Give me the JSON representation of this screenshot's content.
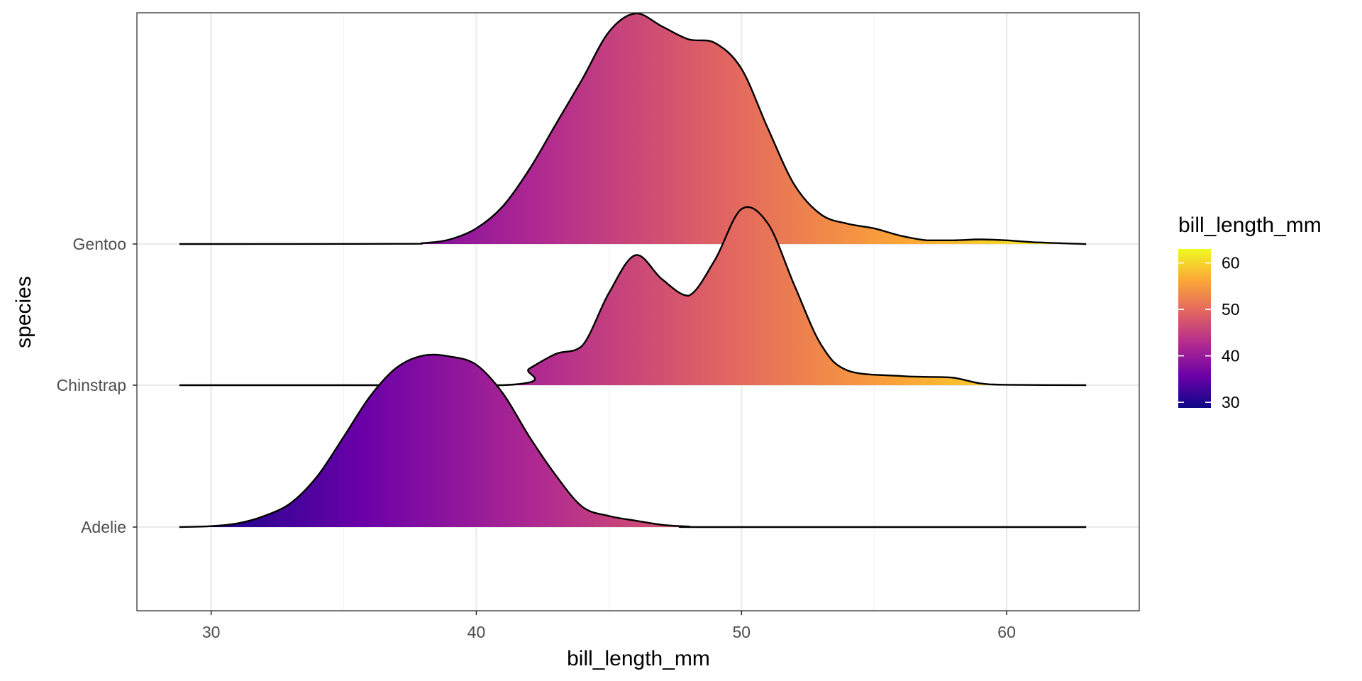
{
  "chart_data": {
    "type": "ridgeline",
    "title": "",
    "xlabel": "bill_length_mm",
    "ylabel": "species",
    "xlim": [
      27.2,
      65.0
    ],
    "x_ticks": [
      30,
      40,
      50,
      60
    ],
    "x_tick_labels": [
      "30",
      "40",
      "50",
      "60"
    ],
    "grid": true,
    "categories": [
      "Adelie",
      "Chinstrap",
      "Gentoo"
    ],
    "series": [
      {
        "name": "Adelie",
        "range": [
          28.8,
          63.0
        ],
        "density": [
          [
            28.8,
            0
          ],
          [
            30,
            0.01
          ],
          [
            31,
            0.04
          ],
          [
            32,
            0.12
          ],
          [
            33,
            0.26
          ],
          [
            34,
            0.55
          ],
          [
            35,
            0.98
          ],
          [
            36,
            1.42
          ],
          [
            37,
            1.73
          ],
          [
            38,
            1.86
          ],
          [
            39,
            1.85
          ],
          [
            40,
            1.76
          ],
          [
            41,
            1.45
          ],
          [
            42,
            0.98
          ],
          [
            43,
            0.56
          ],
          [
            44,
            0.22
          ],
          [
            45,
            0.12
          ],
          [
            46,
            0.07
          ],
          [
            47,
            0.025
          ],
          [
            48,
            0.006
          ],
          [
            49,
            0
          ],
          [
            63,
            0
          ]
        ]
      },
      {
        "name": "Chinstrap",
        "range": [
          28.8,
          63.0
        ],
        "density": [
          [
            28.8,
            0
          ],
          [
            41,
            0
          ],
          [
            42,
            0.18
          ],
          [
            43,
            0.34
          ],
          [
            44,
            0.43
          ],
          [
            45,
            1.0
          ],
          [
            46,
            1.41
          ],
          [
            47,
            1.15
          ],
          [
            48,
            0.97
          ],
          [
            49,
            1.36
          ],
          [
            50,
            1.91
          ],
          [
            51,
            1.75
          ],
          [
            52,
            1.08
          ],
          [
            53,
            0.44
          ],
          [
            54,
            0.16
          ],
          [
            56,
            0.1
          ],
          [
            57,
            0.09
          ],
          [
            58,
            0.08
          ],
          [
            59,
            0.02
          ],
          [
            60,
            0.005
          ],
          [
            63,
            0
          ]
        ]
      },
      {
        "name": "Gentoo",
        "range": [
          28.8,
          63.0
        ],
        "density": [
          [
            28.8,
            0
          ],
          [
            37,
            0.002
          ],
          [
            38,
            0.01
          ],
          [
            39,
            0.05
          ],
          [
            40,
            0.17
          ],
          [
            41,
            0.41
          ],
          [
            42,
            0.81
          ],
          [
            43,
            1.3
          ],
          [
            44,
            1.79
          ],
          [
            45,
            2.3
          ],
          [
            46,
            2.5
          ],
          [
            47,
            2.36
          ],
          [
            48,
            2.22
          ],
          [
            49,
            2.18
          ],
          [
            50,
            1.9
          ],
          [
            51,
            1.25
          ],
          [
            52,
            0.64
          ],
          [
            53,
            0.32
          ],
          [
            54,
            0.22
          ],
          [
            55,
            0.17
          ],
          [
            56,
            0.09
          ],
          [
            57,
            0.04
          ],
          [
            58,
            0.04
          ],
          [
            59,
            0.05
          ],
          [
            60,
            0.04
          ],
          [
            61,
            0.02
          ],
          [
            63,
            0
          ]
        ]
      }
    ],
    "legend": {
      "title": "bill_length_mm",
      "position": "right",
      "labels": [
        "30",
        "40",
        "50",
        "60"
      ],
      "values": [
        30,
        40,
        50,
        60
      ],
      "range": [
        28.8,
        63.0
      ]
    },
    "colorscale": {
      "name": "plasma",
      "stops": [
        "#0d0887",
        "#6a00a8",
        "#b12a90",
        "#e16462",
        "#fca636",
        "#f0f921"
      ]
    }
  }
}
